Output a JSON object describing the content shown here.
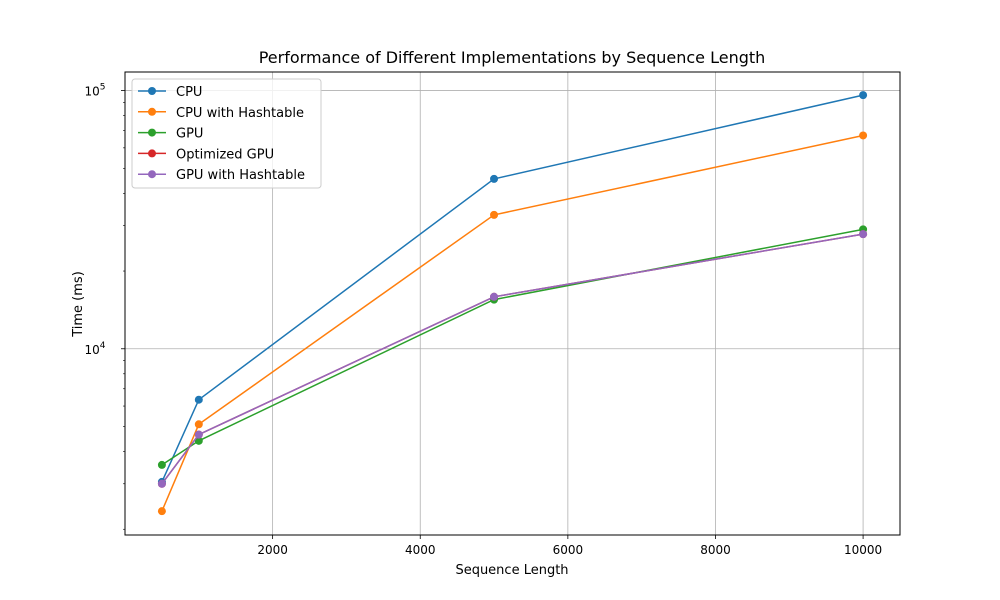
{
  "chart_data": {
    "type": "line",
    "title": "Performance of Different Implementations by Sequence Length",
    "xlabel": "Sequence Length",
    "ylabel": "Time (ms)",
    "yscale": "log",
    "xlim": [
      0,
      10500
    ],
    "ylim": [
      1900,
      118000
    ],
    "x_ticks": [
      2000,
      4000,
      6000,
      8000,
      10000
    ],
    "x_tick_labels": [
      "2000",
      "4000",
      "6000",
      "8000",
      "10000"
    ],
    "y_ticks": [
      {
        "value": 10000,
        "base": "10",
        "exp": "4"
      },
      {
        "value": 100000,
        "base": "10",
        "exp": "5"
      }
    ],
    "grid": true,
    "legend_position": "top-left",
    "x": [
      500,
      1000,
      5000,
      10000
    ],
    "series": [
      {
        "name": "CPU",
        "color": "#1f77b4",
        "values": [
          3050,
          6350,
          45500,
          96000
        ]
      },
      {
        "name": "CPU with Hashtable",
        "color": "#ff7f0e",
        "values": [
          2350,
          5100,
          33000,
          67000
        ]
      },
      {
        "name": "GPU",
        "color": "#2ca02c",
        "values": [
          3550,
          4400,
          15500,
          29000
        ]
      },
      {
        "name": "Optimized GPU",
        "color": "#d62728",
        "values": [
          3000,
          4650,
          15900,
          27800
        ]
      },
      {
        "name": "GPU with Hashtable",
        "color": "#9467bd",
        "values": [
          3000,
          4650,
          15900,
          27800
        ]
      }
    ]
  }
}
